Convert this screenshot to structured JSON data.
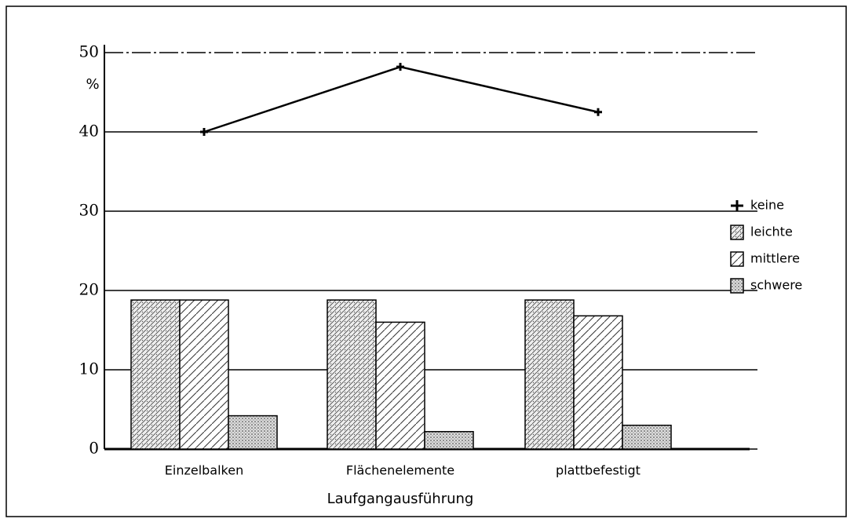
{
  "chart_data": {
    "type": "bar",
    "x_label": "Laufgangausführung",
    "y_unit": "%",
    "categories": [
      "Einzelbalken",
      "Flächenelemente",
      "plattbefestigt"
    ],
    "series": [
      {
        "name": "keine",
        "type": "line",
        "color": "#000000",
        "values": [
          40,
          48.2,
          42.5
        ]
      },
      {
        "name": "leichte",
        "pattern": "cross",
        "color": "#000000",
        "values": [
          18.8,
          18.8,
          18.8
        ]
      },
      {
        "name": "mittlere",
        "pattern": "diagonal",
        "color": "#000000",
        "values": [
          18.8,
          16,
          16.8
        ]
      },
      {
        "name": "schwere",
        "pattern": "dots",
        "color": "#000000",
        "values": [
          4.2,
          2.2,
          3
        ]
      }
    ],
    "ylim": [
      0,
      50
    ],
    "yticks": [
      0,
      10,
      20,
      30,
      40,
      50
    ],
    "grid": true
  }
}
